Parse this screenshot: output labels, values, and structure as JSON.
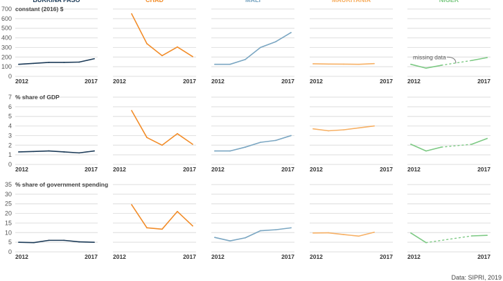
{
  "chart_data": {
    "type": "line",
    "layout": "small-multiples",
    "grid": true,
    "source": "Data: SIPRI, 2019",
    "years": [
      2012,
      2013,
      2014,
      2015,
      2016,
      2017
    ],
    "x_tick_labels": [
      "2012",
      "2017"
    ],
    "countries": [
      {
        "name": "BURKINA FASO",
        "color": "#1b3a57"
      },
      {
        "name": "CHAD",
        "color": "#f28c28"
      },
      {
        "name": "MALI",
        "color": "#7aa6c2"
      },
      {
        "name": "MAURITANIA",
        "color": "#f7b064"
      },
      {
        "name": "NIGER",
        "color": "#7cc983"
      }
    ],
    "rows": [
      {
        "label": "constant (2016) $",
        "ylim": [
          0,
          700
        ],
        "yticks": [
          "0",
          "100",
          "200",
          "300",
          "400",
          "500",
          "600",
          "700"
        ],
        "series": [
          [
            125,
            135,
            145,
            145,
            148,
            183
          ],
          [
            null,
            650,
            340,
            215,
            305,
            205
          ],
          [
            125,
            125,
            175,
            300,
            360,
            455
          ],
          [
            130,
            128,
            127,
            125,
            132,
            null
          ],
          [
            125,
            85,
            115,
            null,
            165,
            195
          ]
        ],
        "annotation": {
          "text": "missing data",
          "country": "NIGER"
        }
      },
      {
        "label": "% share of GDP",
        "ylim": [
          0,
          7
        ],
        "yticks": [
          "0",
          "1",
          "2",
          "3",
          "4",
          "5",
          "6",
          "7"
        ],
        "series": [
          [
            1.3,
            1.35,
            1.4,
            1.3,
            1.2,
            1.4
          ],
          [
            null,
            5.6,
            2.8,
            2.0,
            3.2,
            2.1
          ],
          [
            1.4,
            1.4,
            1.8,
            2.3,
            2.5,
            3.0
          ],
          [
            3.7,
            3.5,
            3.6,
            3.8,
            4.0,
            null
          ],
          [
            2.1,
            1.4,
            1.8,
            null,
            2.1,
            2.7
          ]
        ]
      },
      {
        "label": "% share of government spending",
        "ylim": [
          0,
          35
        ],
        "yticks": [
          "0",
          "5",
          "10",
          "15",
          "20",
          "25",
          "30",
          "35"
        ],
        "series": [
          [
            5.0,
            4.8,
            6.0,
            6.0,
            5.2,
            5.0
          ],
          [
            null,
            24.5,
            12.5,
            11.8,
            21.0,
            13.5
          ],
          [
            7.5,
            5.7,
            7.3,
            11.0,
            11.5,
            12.5
          ],
          [
            9.8,
            9.9,
            9.0,
            8.2,
            10.2,
            null
          ],
          [
            9.8,
            4.8,
            null,
            null,
            8.3,
            8.6
          ]
        ]
      }
    ]
  }
}
